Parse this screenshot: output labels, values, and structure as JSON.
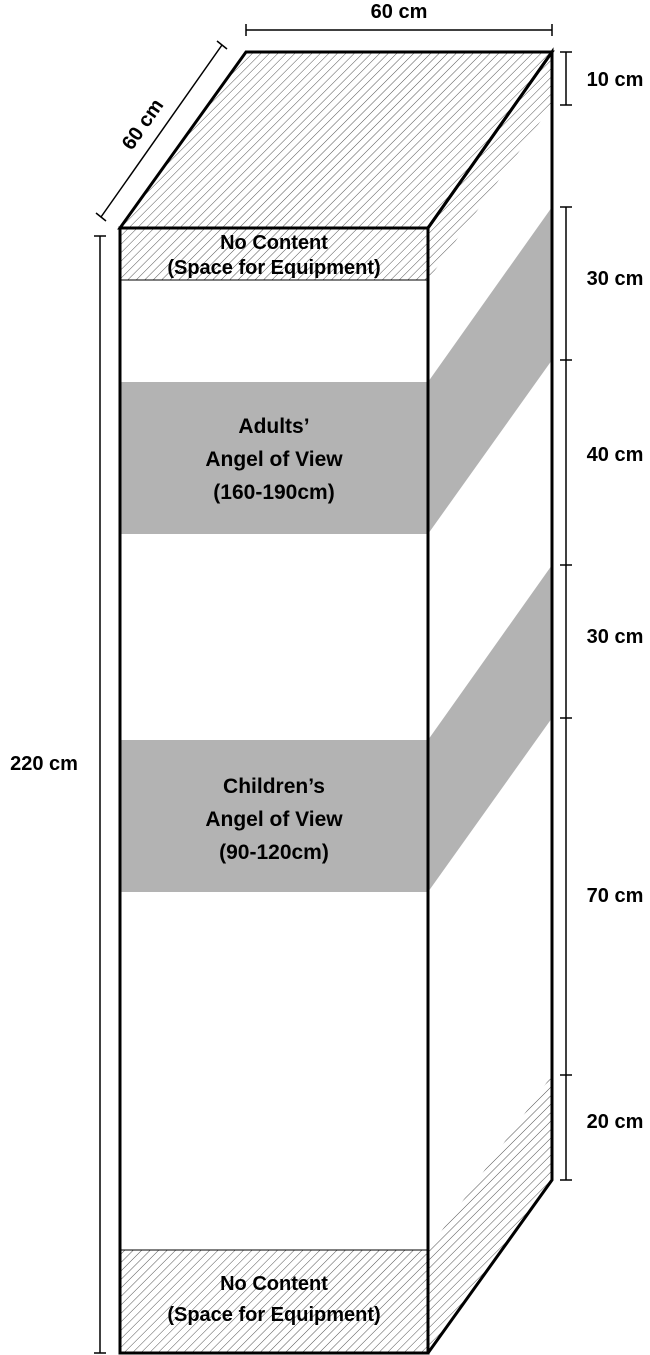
{
  "top_dimensions": {
    "width": "60 cm",
    "depth": "60 cm"
  },
  "total_height": "220 cm",
  "zones": {
    "top_no_content": {
      "line1": "No Content",
      "line2": "(Space for Equipment)"
    },
    "adults": {
      "line1": "Adults’",
      "line2": "Angel of View",
      "line3": "(160-190cm)"
    },
    "children": {
      "line1": "Children’s",
      "line2": "Angel of View",
      "line3": "(90-120cm)"
    },
    "bottom_no_content": {
      "line1": "No Content",
      "line2": "(Space for Equipment)"
    }
  },
  "segments": [
    {
      "label": "10 cm"
    },
    {
      "label": "30 cm"
    },
    {
      "label": "40 cm"
    },
    {
      "label": "30 cm"
    },
    {
      "label": "70 cm"
    },
    {
      "label": "20 cm"
    }
  ],
  "colors": {
    "view_band": "#b3b3b3",
    "outline": "#000000",
    "hatch": "#555555",
    "background": "#ffffff"
  }
}
